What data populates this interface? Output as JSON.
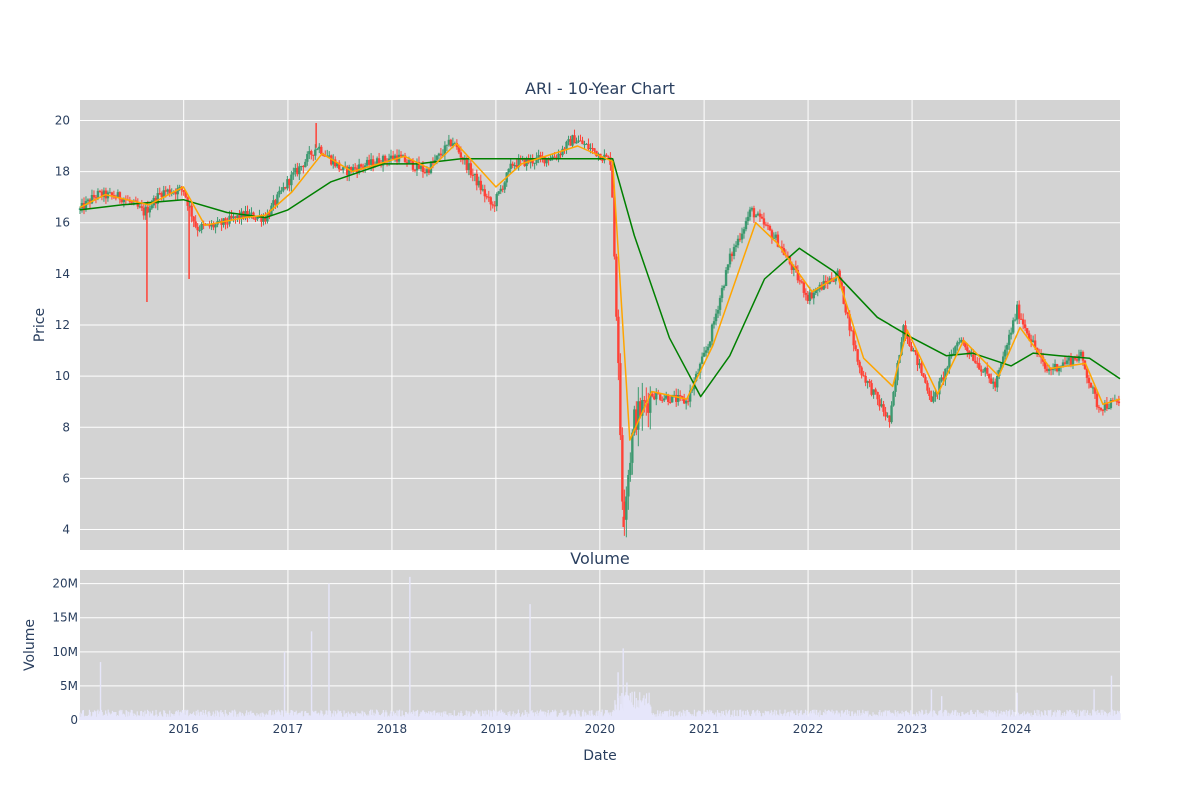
{
  "chart_data": [
    {
      "type": "candlestick",
      "title": "ARI - 10-Year Chart",
      "ylabel": "Price",
      "ylim": [
        3.2,
        20.8
      ],
      "y_ticks": [
        4,
        6,
        8,
        10,
        12,
        14,
        16,
        18,
        20
      ],
      "x_range": [
        "2015-01-02",
        "2024-12-31"
      ],
      "x_ticks": [
        "2016",
        "2017",
        "2018",
        "2019",
        "2020",
        "2021",
        "2022",
        "2023",
        "2024"
      ],
      "grid": true,
      "plot_background": "#d3d3d3",
      "colors": {
        "up": "#3d9970",
        "down": "#ff4136",
        "short_ma": "#ffa500",
        "long_ma": "#008000"
      },
      "price_path": [
        [
          "2015-01-02",
          16.5
        ],
        [
          "2015-03-01",
          17.1
        ],
        [
          "2015-06-01",
          17.0
        ],
        [
          "2015-08-15",
          16.4
        ],
        [
          "2015-10-15",
          17.2
        ],
        [
          "2015-12-31",
          17.3
        ],
        [
          "2016-02-15",
          15.8
        ],
        [
          "2016-05-01",
          15.9
        ],
        [
          "2016-08-01",
          16.3
        ],
        [
          "2016-10-15",
          16.2
        ],
        [
          "2017-01-01",
          17.6
        ],
        [
          "2017-04-15",
          19.0
        ],
        [
          "2017-07-15",
          18.0
        ],
        [
          "2018-01-15",
          18.6
        ],
        [
          "2018-05-01",
          18.0
        ],
        [
          "2018-08-01",
          19.2
        ],
        [
          "2018-12-20",
          16.6
        ],
        [
          "2019-03-01",
          18.3
        ],
        [
          "2019-08-01",
          18.6
        ],
        [
          "2019-10-01",
          19.3
        ],
        [
          "2020-02-10",
          18.4
        ],
        [
          "2020-03-23",
          4.5
        ],
        [
          "2020-05-01",
          8.3
        ],
        [
          "2020-07-01",
          9.3
        ],
        [
          "2020-11-01",
          9.0
        ],
        [
          "2021-01-15",
          11.2
        ],
        [
          "2021-04-01",
          14.6
        ],
        [
          "2021-06-15",
          16.5
        ],
        [
          "2021-09-15",
          15.3
        ],
        [
          "2022-01-01",
          13.1
        ],
        [
          "2022-04-15",
          14.0
        ],
        [
          "2022-07-01",
          10.3
        ],
        [
          "2022-10-15",
          8.2
        ],
        [
          "2022-12-01",
          12.0
        ],
        [
          "2023-03-15",
          9.0
        ],
        [
          "2023-06-15",
          11.5
        ],
        [
          "2023-10-20",
          9.6
        ],
        [
          "2024-01-05",
          12.6
        ],
        [
          "2024-04-15",
          10.2
        ],
        [
          "2024-08-15",
          10.8
        ],
        [
          "2024-10-15",
          8.8
        ],
        [
          "2024-12-31",
          9.0
        ]
      ],
      "spikes": [
        {
          "date": "2015-08-25",
          "low": 12.9
        },
        {
          "date": "2016-01-20",
          "low": 13.8
        },
        {
          "date": "2017-04-10",
          "high": 19.9
        },
        {
          "date": "2020-03-23",
          "low": 4.1
        }
      ],
      "short_ma": [
        [
          "2015-01-02",
          16.6
        ],
        [
          "2015-04-01",
          17.1
        ],
        [
          "2015-09-01",
          16.7
        ],
        [
          "2015-12-31",
          17.4
        ],
        [
          "2016-03-15",
          15.9
        ],
        [
          "2016-08-01",
          16.2
        ],
        [
          "2016-10-15",
          16.3
        ],
        [
          "2017-01-15",
          17.2
        ],
        [
          "2017-05-01",
          18.7
        ],
        [
          "2017-08-15",
          18.0
        ],
        [
          "2018-02-15",
          18.6
        ],
        [
          "2018-05-15",
          18.1
        ],
        [
          "2018-08-15",
          19.1
        ],
        [
          "2019-01-01",
          17.4
        ],
        [
          "2019-04-01",
          18.3
        ],
        [
          "2019-10-15",
          19.0
        ],
        [
          "2020-02-15",
          18.4
        ],
        [
          "2020-04-15",
          7.5
        ],
        [
          "2020-07-01",
          9.4
        ],
        [
          "2020-11-01",
          9.1
        ],
        [
          "2021-02-01",
          11.2
        ],
        [
          "2021-07-01",
          16.0
        ],
        [
          "2021-09-15",
          15.2
        ],
        [
          "2022-01-15",
          13.3
        ],
        [
          "2022-04-15",
          13.9
        ],
        [
          "2022-07-15",
          10.7
        ],
        [
          "2022-10-25",
          9.6
        ],
        [
          "2022-12-15",
          11.8
        ],
        [
          "2023-04-01",
          9.3
        ],
        [
          "2023-07-01",
          11.4
        ],
        [
          "2023-11-01",
          10.0
        ],
        [
          "2024-01-15",
          11.9
        ],
        [
          "2024-05-01",
          10.3
        ],
        [
          "2024-09-01",
          10.5
        ],
        [
          "2024-11-01",
          8.9
        ],
        [
          "2024-12-31",
          9.1
        ]
      ],
      "long_ma": [
        [
          "2015-01-02",
          16.5
        ],
        [
          "2015-06-01",
          16.7
        ],
        [
          "2015-12-31",
          16.9
        ],
        [
          "2016-06-01",
          16.4
        ],
        [
          "2016-10-15",
          16.2
        ],
        [
          "2017-01-01",
          16.5
        ],
        [
          "2017-06-01",
          17.6
        ],
        [
          "2017-12-01",
          18.3
        ],
        [
          "2018-04-01",
          18.3
        ],
        [
          "2018-09-01",
          18.5
        ],
        [
          "2019-01-01",
          18.5
        ],
        [
          "2019-07-01",
          18.5
        ],
        [
          "2019-12-01",
          18.5
        ],
        [
          "2020-02-15",
          18.5
        ],
        [
          "2020-05-01",
          15.5
        ],
        [
          "2020-09-01",
          11.5
        ],
        [
          "2020-12-20",
          9.2
        ],
        [
          "2021-04-01",
          10.8
        ],
        [
          "2021-08-01",
          13.8
        ],
        [
          "2021-12-01",
          15.0
        ],
        [
          "2022-04-01",
          14.1
        ],
        [
          "2022-09-01",
          12.3
        ],
        [
          "2023-01-01",
          11.5
        ],
        [
          "2023-05-01",
          10.8
        ],
        [
          "2023-08-01",
          10.9
        ],
        [
          "2023-12-15",
          10.4
        ],
        [
          "2024-03-01",
          10.9
        ],
        [
          "2024-06-01",
          10.8
        ],
        [
          "2024-09-15",
          10.7
        ],
        [
          "2024-12-31",
          9.9
        ]
      ]
    },
    {
      "type": "bar",
      "title": "Volume",
      "xlabel": "Date",
      "ylabel": "Volume",
      "ylim": [
        0,
        22000000
      ],
      "y_ticks": [
        0,
        5000000,
        10000000,
        15000000,
        20000000
      ],
      "y_tick_labels": [
        "0",
        "5M",
        "10M",
        "15M",
        "20M"
      ],
      "x_ticks": [
        "2016",
        "2017",
        "2018",
        "2019",
        "2020",
        "2021",
        "2022",
        "2023",
        "2024"
      ],
      "grid": true,
      "plot_background": "#d3d3d3",
      "bar_color": "#e6e6fa",
      "baseline_volume": 900000,
      "spikes": [
        [
          "2015-03-15",
          8500000
        ],
        [
          "2016-12-20",
          10000000
        ],
        [
          "2017-03-25",
          13000000
        ],
        [
          "2017-05-25",
          20000000
        ],
        [
          "2018-03-05",
          21000000
        ],
        [
          "2019-05-01",
          17000000
        ],
        [
          "2020-03-05",
          7000000
        ],
        [
          "2020-03-23",
          10500000
        ],
        [
          "2020-04-05",
          5500000
        ],
        [
          "2023-03-10",
          4500000
        ],
        [
          "2023-04-15",
          3500000
        ],
        [
          "2024-01-05",
          4000000
        ],
        [
          "2024-10-01",
          4500000
        ],
        [
          "2024-12-01",
          6500000
        ]
      ]
    }
  ]
}
